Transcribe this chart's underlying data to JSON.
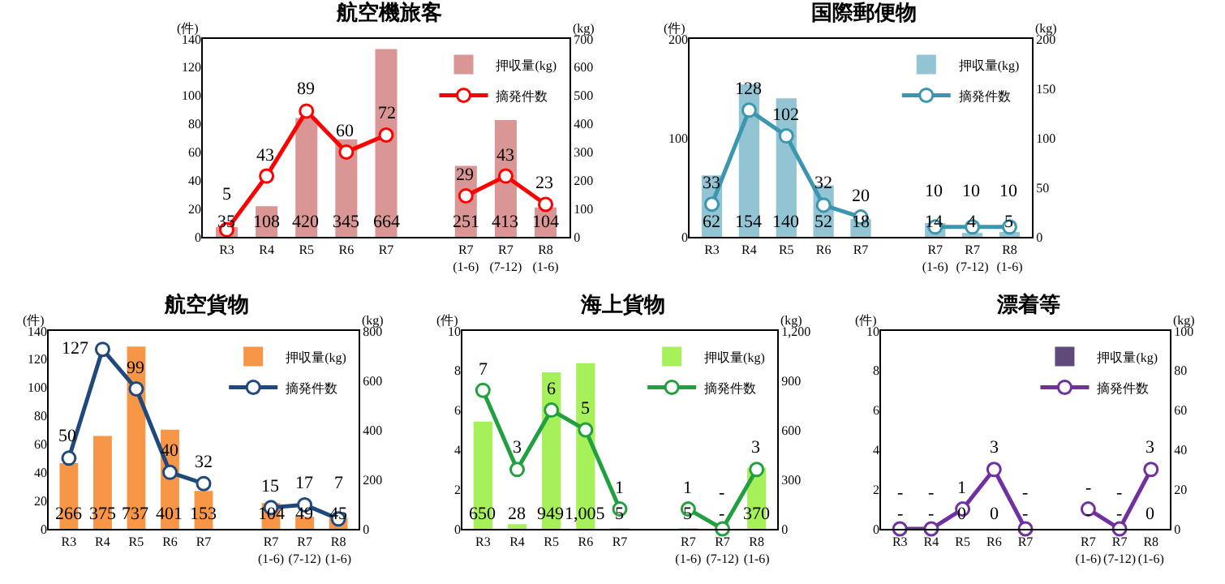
{
  "chart_data": [
    {
      "type": "bar",
      "title": "航空機旅客",
      "ylabel": "(件)",
      "y2label": "(kg)",
      "categories": [
        "R3",
        "R4",
        "R5",
        "R6",
        "R7",
        null,
        "R7\n(1-6)",
        "R7\n(7-12)",
        "R8\n(1-6)"
      ],
      "ylim": [
        0,
        140
      ],
      "yticks": [
        0,
        20,
        40,
        60,
        80,
        100,
        120,
        140
      ],
      "y2lim": [
        0,
        700
      ],
      "y2ticks": [
        0,
        100,
        200,
        300,
        400,
        500,
        600,
        700
      ],
      "legend": "top right",
      "marker": "circle",
      "grid": false,
      "series": [
        {
          "name": "押収量(kg)",
          "axis": "y2",
          "color": "#d99694",
          "values": [
            35,
            108,
            420,
            345,
            664,
            null,
            251,
            413,
            104
          ],
          "value_labels": [
            "35",
            "108",
            "420",
            "345",
            "664",
            null,
            "251",
            "413",
            "104"
          ]
        },
        {
          "name": "摘発件数",
          "type": "line",
          "color": "#ff0000",
          "values": [
            5,
            43,
            89,
            60,
            72,
            null,
            29,
            43,
            23
          ],
          "value_labels": [
            "5",
            "43",
            "89",
            "60",
            "72",
            null,
            "29",
            "43",
            "23"
          ]
        }
      ]
    },
    {
      "type": "bar",
      "title": "国際郵便物",
      "ylabel": "(件)",
      "y2label": "(kg)",
      "categories": [
        "R3",
        "R4",
        "R5",
        "R6",
        "R7",
        null,
        "R7\n(1-6)",
        "R7\n(7-12)",
        "R8\n(1-6)"
      ],
      "ylim": [
        0,
        200
      ],
      "yticks": [
        0,
        100,
        200
      ],
      "y2lim": [
        0,
        200
      ],
      "y2ticks": [
        0,
        50,
        100,
        150,
        200
      ],
      "legend": "top right",
      "marker": "circle",
      "grid": false,
      "series": [
        {
          "name": "押収量(kg)",
          "axis": "y2",
          "color": "#93c4d4",
          "values": [
            62,
            154,
            140,
            52,
            18,
            null,
            14,
            4,
            5
          ],
          "value_labels": [
            "62",
            "154",
            "140",
            "52",
            "18",
            null,
            "14",
            "4",
            "5"
          ]
        },
        {
          "name": "摘発件数",
          "type": "line",
          "color": "#3c96b0",
          "values": [
            33,
            128,
            102,
            32,
            20,
            null,
            10,
            10,
            10
          ],
          "value_labels": [
            "33",
            "128",
            "102",
            "32",
            "20",
            null,
            "10",
            "10",
            "10"
          ]
        }
      ]
    },
    {
      "type": "bar",
      "title": "航空貨物",
      "ylabel": "(件)",
      "y2label": "(kg)",
      "categories": [
        "R3",
        "R4",
        "R5",
        "R6",
        "R7",
        null,
        "R7\n(1-6)",
        "R7\n(7-12)",
        "R8\n(1-6)"
      ],
      "ylim": [
        0,
        140
      ],
      "yticks": [
        0,
        20,
        40,
        60,
        80,
        100,
        120,
        140
      ],
      "y2lim": [
        0,
        800
      ],
      "y2ticks": [
        0,
        200,
        400,
        600,
        800
      ],
      "legend": "top right",
      "marker": "circle",
      "grid": false,
      "series": [
        {
          "name": "押収量(kg)",
          "axis": "y2",
          "color": "#f79646",
          "values": [
            266,
            375,
            737,
            401,
            153,
            null,
            104,
            49,
            45
          ],
          "value_labels": [
            "266",
            "375",
            "737",
            "401",
            "153",
            null,
            "104",
            "49",
            "45"
          ]
        },
        {
          "name": "摘発件数",
          "type": "line",
          "color": "#1f497d",
          "values": [
            50,
            127,
            99,
            40,
            32,
            null,
            15,
            17,
            7
          ],
          "value_labels": [
            "50",
            "127",
            "99",
            "40",
            "32",
            null,
            "15",
            "17",
            "7"
          ]
        }
      ]
    },
    {
      "type": "bar",
      "title": "海上貨物",
      "ylabel": "(件)",
      "y2label": "(kg)",
      "categories": [
        "R3",
        "R4",
        "R5",
        "R6",
        "R7",
        null,
        "R7\n(1-6)",
        "R7\n(7-12)",
        "R8\n(1-6)"
      ],
      "ylim": [
        0,
        10
      ],
      "yticks": [
        0,
        2,
        4,
        6,
        8,
        10
      ],
      "y2lim": [
        0,
        1200
      ],
      "y2ticks": [
        0,
        300,
        600,
        900,
        {
          "value": 1200,
          "label": "1,200"
        }
      ],
      "legend": "top right",
      "marker": "circle",
      "grid": false,
      "series": [
        {
          "name": "押収量(kg)",
          "axis": "y2",
          "color": "#a6f05a",
          "values": [
            650,
            28,
            949,
            1005,
            5,
            null,
            5,
            0,
            370
          ],
          "value_labels": [
            "650",
            "28",
            "949",
            "1,005",
            "5",
            null,
            "5",
            "-",
            "370"
          ]
        },
        {
          "name": "摘発件数",
          "type": "line",
          "color": "#22a040",
          "values": [
            7,
            3,
            6,
            5,
            1,
            null,
            1,
            0,
            3
          ],
          "value_labels": [
            "7",
            "3",
            "6",
            "5",
            "1",
            null,
            "1",
            "-",
            "3"
          ]
        }
      ]
    },
    {
      "type": "bar",
      "title": "漂着等",
      "ylabel": "(件)",
      "y2label": "(kg)",
      "categories": [
        "R3",
        "R4",
        "R5",
        "R6",
        "R7",
        null,
        "R7\n(1-6)",
        "R7\n(7-12)",
        "R8\n(1-6)"
      ],
      "ylim": [
        0,
        10
      ],
      "yticks": [
        0,
        2,
        4,
        6,
        8,
        10
      ],
      "y2lim": [
        0,
        100
      ],
      "y2ticks": [
        0,
        20,
        40,
        60,
        80,
        100
      ],
      "legend": "top right",
      "marker": "circle",
      "grid": false,
      "series": [
        {
          "name": "押収量(kg)",
          "axis": "y2",
          "color": "#604a7b",
          "values": [
            0,
            0,
            0,
            0,
            0,
            null,
            0,
            0,
            0
          ],
          "value_labels": [
            "-",
            "-",
            "0",
            "0",
            "-",
            null,
            "-",
            "-",
            "0"
          ]
        },
        {
          "name": "摘発件数",
          "type": "line",
          "color": "#7030a0",
          "values": [
            0,
            0,
            1,
            3,
            0,
            null,
            1,
            0,
            3
          ],
          "value_labels": [
            "-",
            "-",
            "1",
            "3",
            "-",
            null,
            "-",
            "-",
            "3"
          ]
        }
      ]
    }
  ]
}
